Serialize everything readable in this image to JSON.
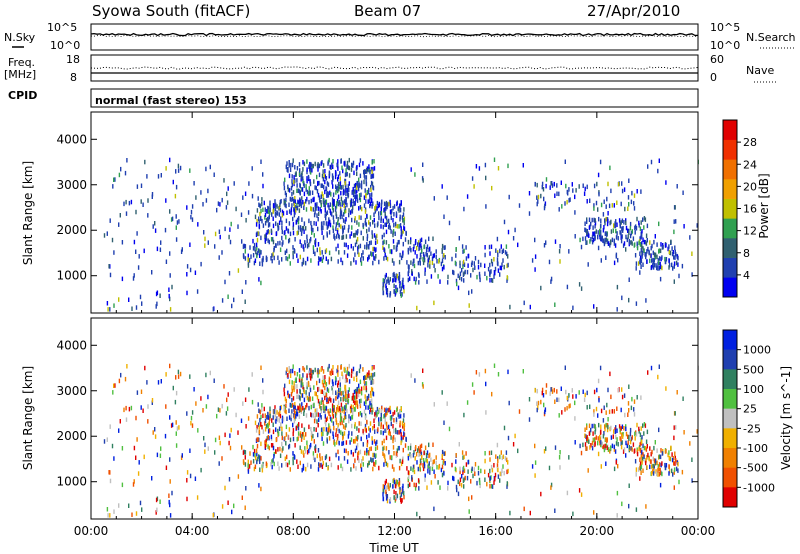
{
  "header": {
    "station": "Syowa South (fitACF)",
    "beam": "Beam 07",
    "date": "27/Apr/2010"
  },
  "strips": {
    "nsky_label": "N.Sky",
    "nsearch_label": "N.Search",
    "freq_label": "Freq.",
    "freq_unit": "[MHz]",
    "nave_label": "Nave",
    "cpid_label": "CPID",
    "cpid_value": "normal (fast stereo) 153",
    "noise_ticks_left": [
      "10^5",
      "10^0"
    ],
    "noise_ticks_right": [
      "10^5",
      "10^0"
    ],
    "freq_ticks": [
      "18",
      "8"
    ],
    "nave_ticks": [
      "60",
      "0"
    ]
  },
  "colors": {
    "power": [
      "#0000f0",
      "#2040b0",
      "#306070",
      "#30a050",
      "#c0c000",
      "#f0a000",
      "#f07000",
      "#f03000",
      "#e00000"
    ],
    "velocity": [
      "#e00000",
      "#f05000",
      "#f08000",
      "#f0b000",
      "#c0c0c0",
      "#50c040",
      "#308060",
      "#2040b0",
      "#0020e0"
    ]
  },
  "chart_data": [
    {
      "type": "heatmap",
      "title": "Power",
      "xlabel": "",
      "ylabel": "Slant Range [km]",
      "x_ticks": [
        "00:00",
        "04:00",
        "08:00",
        "12:00",
        "16:00",
        "20:00",
        "00:00"
      ],
      "x_hours": [
        0,
        4,
        8,
        12,
        16,
        20,
        24
      ],
      "y_ticks": [
        1000,
        2000,
        3000,
        4000
      ],
      "xlim": [
        0,
        24
      ],
      "ylim": [
        180,
        4600
      ],
      "colorbar": {
        "label": "Power [dB]",
        "ticks": [
          "4",
          "8",
          "12",
          "16",
          "20",
          "24",
          "28"
        ],
        "range": [
          0,
          30
        ]
      }
    },
    {
      "type": "heatmap",
      "title": "Velocity",
      "xlabel": "Time UT",
      "ylabel": "Slant Range [km]",
      "x_ticks": [
        "00:00",
        "04:00",
        "08:00",
        "12:00",
        "16:00",
        "20:00",
        "00:00"
      ],
      "x_hours": [
        0,
        4,
        8,
        12,
        16,
        20,
        24
      ],
      "y_ticks": [
        1000,
        2000,
        3000,
        4000
      ],
      "xlim": [
        0,
        24
      ],
      "ylim": [
        180,
        4600
      ],
      "colorbar": {
        "label": "Velocity [m s^-1]",
        "ticks": [
          "1000",
          "500",
          "100",
          "25",
          "-25",
          "-100",
          "-500",
          "-1000"
        ]
      }
    }
  ]
}
